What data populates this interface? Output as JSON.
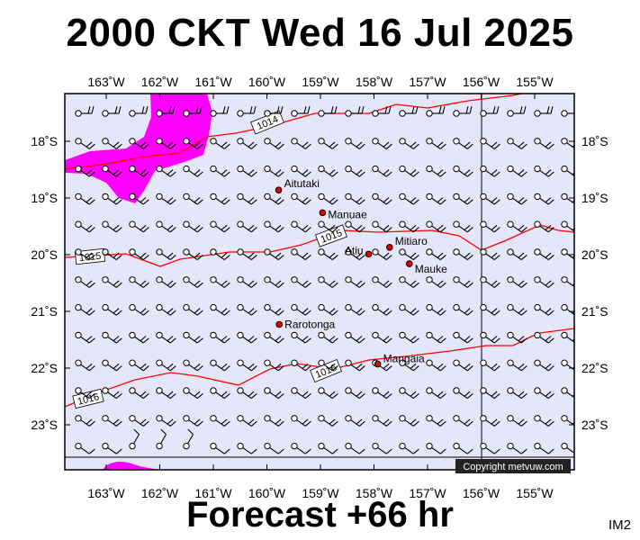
{
  "title": "2000 CKT Wed 16 Jul 2025",
  "forecast": "Forecast +66 hr",
  "corner_label": "IM2",
  "copyright": "Copyright metvuw.com",
  "colors": {
    "plot_background": "#e6e6fa",
    "isobar": "#ff0000",
    "precipitation": "#ff00ff",
    "frame": "#000000"
  },
  "axes": {
    "top_labels": [
      "163˚W",
      "162˚W",
      "161˚W",
      "160˚W",
      "159˚W",
      "158˚W",
      "157˚W",
      "156˚W",
      "155˚W"
    ],
    "bottom_labels": [
      "163˚W",
      "162˚W",
      "161˚W",
      "160˚W",
      "159˚W",
      "158˚W",
      "157˚W",
      "156˚W",
      "155˚W"
    ],
    "left_labels": [
      "18˚S",
      "19˚S",
      "20˚S",
      "21˚S",
      "22˚S",
      "23˚S"
    ],
    "right_labels": [
      "18˚S",
      "19˚S",
      "20˚S",
      "21˚S",
      "22˚S",
      "23˚S"
    ],
    "lon_values": [
      -163,
      -162,
      -161,
      -160,
      -159,
      -158,
      -157,
      -156,
      -155
    ],
    "lat_values": [
      -18,
      -19,
      -20,
      -21,
      -22,
      -23
    ]
  },
  "isobars": [
    {
      "label": "1014",
      "value": 1014
    },
    {
      "label": "1015",
      "value": 1015
    },
    {
      "label": "1015",
      "value": 1015
    },
    {
      "label": "1016",
      "value": 1016
    },
    {
      "label": "1016",
      "value": 1016
    }
  ],
  "places": [
    {
      "name": "Aitutaki",
      "lon": -159.78,
      "lat": -18.86
    },
    {
      "name": "Manuae",
      "lon": -158.96,
      "lat": -19.26
    },
    {
      "name": "Mitiaro",
      "lon": -157.71,
      "lat": -19.87
    },
    {
      "name": "Atiu",
      "lon": -158.1,
      "lat": -19.99
    },
    {
      "name": "Mauke",
      "lon": -157.34,
      "lat": -20.16
    },
    {
      "name": "Rarotonga",
      "lon": -159.77,
      "lat": -21.23
    },
    {
      "name": "Mangaia",
      "lon": -157.93,
      "lat": -21.93
    }
  ]
}
